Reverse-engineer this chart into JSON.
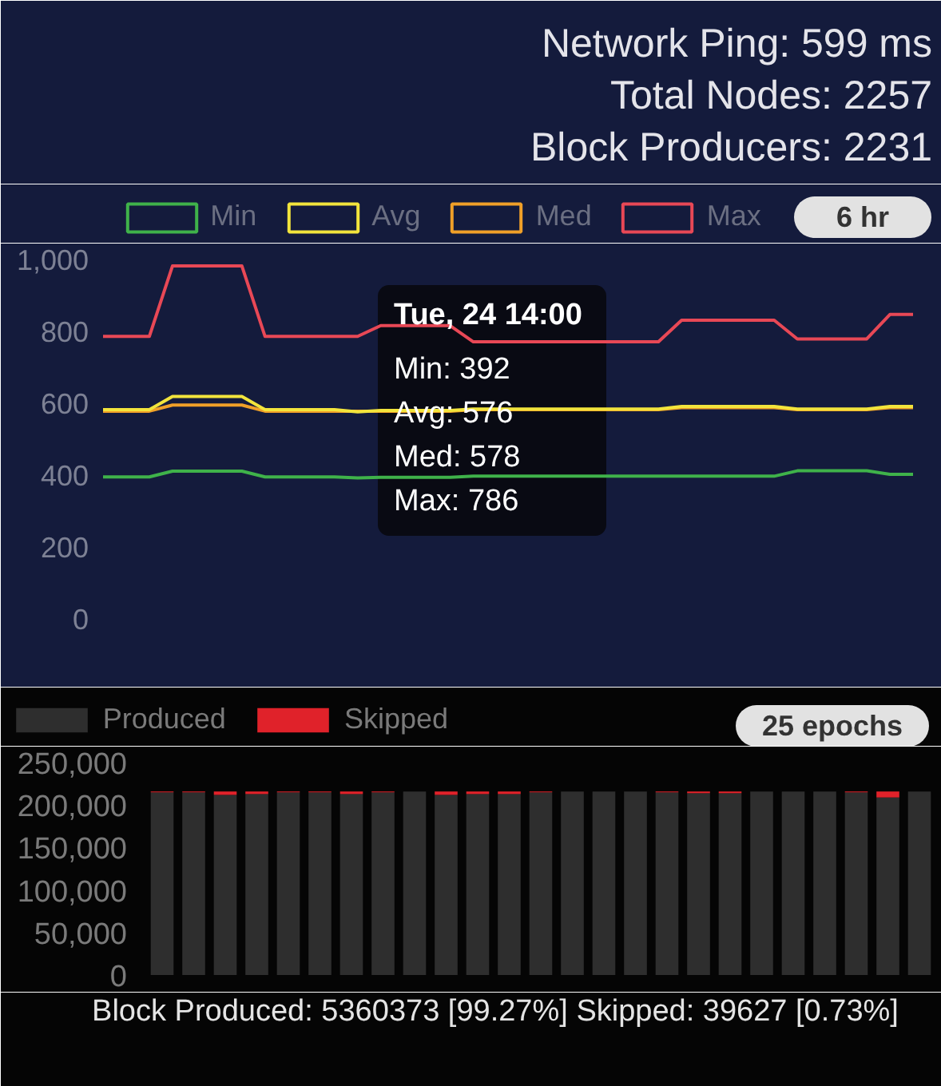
{
  "chart_data": [
    {
      "type": "other",
      "annotations": [
        "Network Ping: 599 ms",
        "Total Nodes: 2257",
        "Block Producers: 2231"
      ]
    },
    {
      "type": "line",
      "categories": [
        null,
        null,
        null,
        null,
        null,
        null,
        null,
        null,
        null,
        null,
        null,
        null,
        null,
        null,
        null,
        null,
        null,
        null,
        null,
        null,
        null,
        null,
        null,
        null,
        null,
        null,
        null,
        null,
        null,
        null,
        null,
        null,
        null,
        null,
        null,
        null
      ],
      "series": [
        {
          "name": "Min",
          "color": "#3fb24a",
          "values": [
            395,
            395,
            395,
            411,
            411,
            411,
            411,
            395,
            395,
            395,
            395,
            392,
            394,
            394,
            394,
            394,
            397,
            397,
            397,
            397,
            397,
            397,
            397,
            397,
            397,
            397,
            397,
            397,
            397,
            397,
            412,
            412,
            412,
            412,
            402,
            402
          ]
        },
        {
          "name": "Avg",
          "color": "#f2e43c",
          "values": [
            582,
            582,
            582,
            619,
            619,
            619,
            619,
            582,
            582,
            582,
            582,
            576,
            580,
            580,
            580,
            580,
            584,
            584,
            584,
            584,
            584,
            584,
            584,
            584,
            584,
            591,
            591,
            591,
            591,
            591,
            584,
            584,
            584,
            584,
            591,
            591
          ]
        },
        {
          "name": "Med",
          "color": "#f0a028",
          "values": [
            578,
            578,
            578,
            595,
            595,
            595,
            595,
            578,
            578,
            578,
            578,
            578,
            578,
            578,
            578,
            578,
            582,
            582,
            582,
            582,
            582,
            582,
            582,
            582,
            582,
            588,
            588,
            588,
            588,
            588,
            582,
            582,
            582,
            582,
            588,
            588
          ]
        },
        {
          "name": "Max",
          "color": "#e84856",
          "values": [
            786,
            786,
            786,
            982,
            982,
            982,
            982,
            786,
            786,
            786,
            786,
            786,
            816,
            816,
            816,
            816,
            771,
            771,
            771,
            771,
            771,
            771,
            771,
            771,
            771,
            831,
            831,
            831,
            831,
            831,
            779,
            779,
            779,
            779,
            847,
            847
          ]
        }
      ],
      "ylim": [
        0,
        1000
      ],
      "yticks": [
        0,
        200,
        400,
        600,
        800,
        {
          "value": 1000,
          "label": "1,000"
        }
      ],
      "tick_labels": "y",
      "legend": "top",
      "line_style": "solid",
      "annotations": [
        "6 hr",
        "Tue, 24 14:00",
        "Min: 392",
        "Avg: 576",
        "Med: 578",
        "Max: 786"
      ]
    },
    {
      "type": "bar",
      "stacked": true,
      "categories": [
        null,
        null,
        null,
        null,
        null,
        null,
        null,
        null,
        null,
        null,
        null,
        null,
        null,
        null,
        null,
        null,
        null,
        null,
        null,
        null,
        null,
        null,
        null,
        null,
        null
      ],
      "series": [
        {
          "name": "Produced",
          "color": "#2e2e2e",
          "values": [
            215000,
            215000,
            212000,
            213000,
            215000,
            215000,
            213000,
            215000,
            216000,
            212000,
            213000,
            213000,
            215000,
            216000,
            216000,
            216000,
            215000,
            214000,
            214000,
            216000,
            216000,
            216000,
            215000,
            209000,
            216000
          ]
        },
        {
          "name": "Skipped",
          "color": "#e0222a",
          "values": [
            1000,
            1000,
            4000,
            3000,
            1000,
            1000,
            3000,
            1000,
            0,
            4000,
            3000,
            3000,
            1000,
            0,
            0,
            0,
            1000,
            2000,
            2000,
            0,
            0,
            0,
            1000,
            7000,
            0
          ]
        }
      ],
      "ylim": [
        0,
        250000
      ],
      "yticks": [
        0,
        {
          "value": 50000,
          "label": "50,000"
        },
        {
          "value": 100000,
          "label": "100,000"
        },
        {
          "value": 150000,
          "label": "150,000"
        },
        {
          "value": 200000,
          "label": "200,000"
        },
        {
          "value": 250000,
          "label": "250,000"
        }
      ],
      "tick_labels": "y",
      "legend": "top",
      "annotations": [
        "25 epochs",
        "Block Produced: 5360373 [99.27%] Skipped: 39627 [0.73%]"
      ]
    }
  ]
}
